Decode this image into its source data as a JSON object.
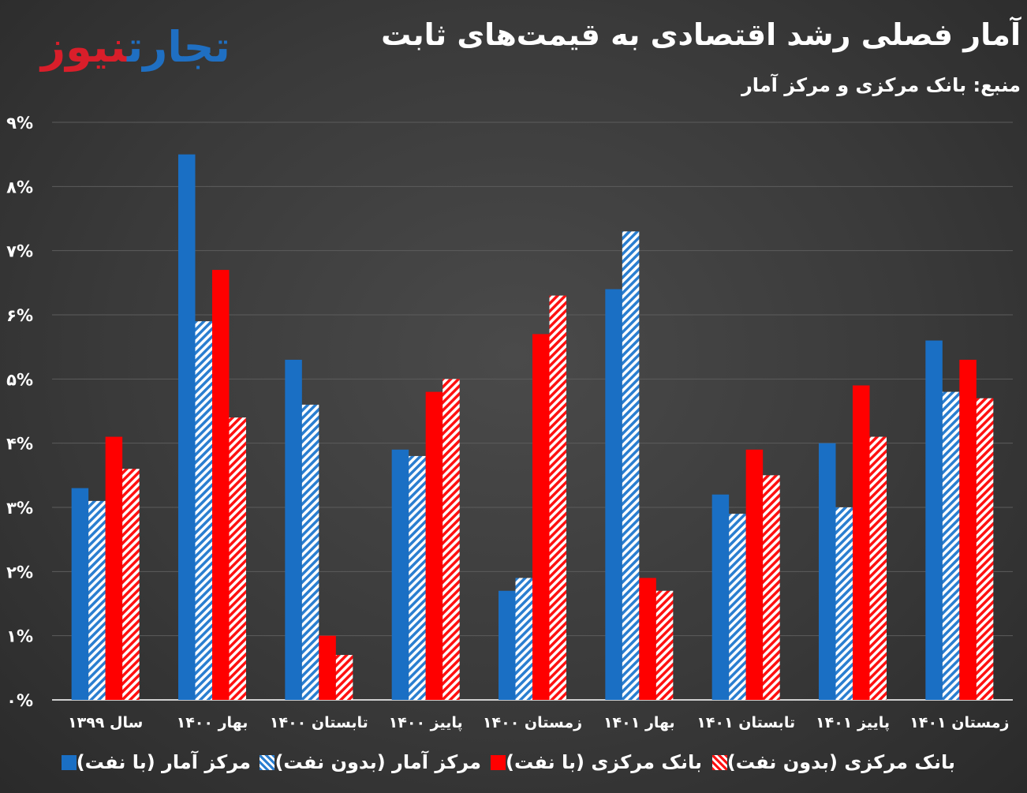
{
  "header": {
    "title": "آمار فصلی رشد اقتصادی به قیمت‌های ثابت",
    "source": "منبع: بانک مرکزی و مرکز آمار",
    "logo_part1": "نیوز",
    "logo_part2": "تجارت"
  },
  "chart_data": {
    "type": "bar",
    "title": "آمار فصلی رشد اقتصادی به قیمت‌های ثابت",
    "categories": [
      "سال ۱۳۹۹",
      "بهار ۱۴۰۰",
      "تابستان ۱۴۰۰",
      "پاییز ۱۴۰۰",
      "زمستان ۱۴۰۰",
      "بهار ۱۴۰۱",
      "تابستان ۱۴۰۱",
      "پاییز ۱۴۰۱",
      "زمستان ۱۴۰۱"
    ],
    "yticks": [
      "۰%",
      "۱%",
      "۲%",
      "۳%",
      "۴%",
      "۵%",
      "۶%",
      "۷%",
      "۸%",
      "۹%"
    ],
    "ylim": [
      0,
      9
    ],
    "grid": true,
    "legend_position": "bottom",
    "series": [
      {
        "name": "مرکز آمار (با نفت)",
        "style": "solid",
        "color": "#1a6fc4",
        "values": [
          3.3,
          8.5,
          5.3,
          3.9,
          1.7,
          6.4,
          3.2,
          4.0,
          5.6
        ]
      },
      {
        "name": "مرکز آمار (بدون نفت)",
        "style": "hatch",
        "color": "#2a7ed0",
        "values": [
          3.1,
          5.9,
          4.6,
          3.8,
          1.9,
          7.3,
          2.9,
          3.0,
          4.8
        ]
      },
      {
        "name": "بانک مرکزی (با نفت)",
        "style": "solid",
        "color": "#ff0000",
        "values": [
          4.1,
          6.7,
          1.0,
          4.8,
          5.7,
          1.9,
          3.9,
          4.9,
          5.3
        ]
      },
      {
        "name": "بانک مرکزی (بدون نفت)",
        "style": "hatch",
        "color": "#ff1010",
        "values": [
          3.6,
          4.4,
          0.7,
          5.0,
          6.3,
          1.7,
          3.5,
          4.1,
          4.7
        ]
      }
    ]
  }
}
